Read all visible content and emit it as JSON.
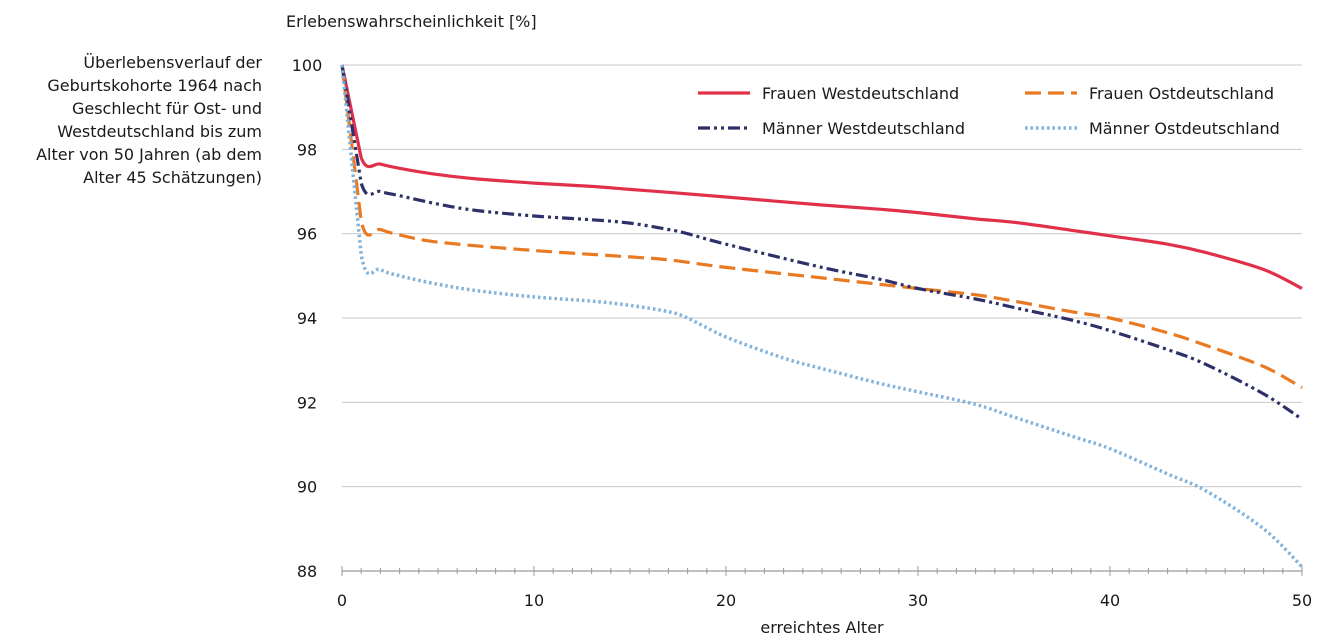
{
  "caption": [
    "Überlebensverlauf der",
    "Geburtskohorte 1964 nach",
    "Geschlecht für Ost- und",
    "Westdeutschland bis zum",
    "Alter von 50 Jahren (ab dem",
    "Alter 45 Schätzungen)"
  ],
  "chart_data": {
    "type": "line",
    "title": "",
    "xlabel": "erreichtes Alter",
    "ylabel": "Erlebenswahrscheinlichkeit [%]",
    "xlim": [
      0,
      50
    ],
    "ylim": [
      88,
      100
    ],
    "x_ticks": [
      "0",
      "10",
      "20",
      "30",
      "40",
      "50"
    ],
    "y_ticks": [
      "88",
      "90",
      "92",
      "94",
      "96",
      "98",
      "100"
    ],
    "grid": "horizontal",
    "legend_position": "top-right",
    "series": [
      {
        "name": "Frauen Westdeutschland",
        "color": "#e0304a",
        "style": "solid",
        "points": [
          [
            0,
            100
          ],
          [
            1,
            97.8
          ],
          [
            2,
            97.65
          ],
          [
            3,
            97.55
          ],
          [
            5,
            97.4
          ],
          [
            7,
            97.3
          ],
          [
            10,
            97.2
          ],
          [
            13,
            97.12
          ],
          [
            15,
            97.05
          ],
          [
            17,
            96.98
          ],
          [
            20,
            96.87
          ],
          [
            25,
            96.68
          ],
          [
            28,
            96.58
          ],
          [
            30,
            96.5
          ],
          [
            33,
            96.35
          ],
          [
            35,
            96.27
          ],
          [
            38,
            96.08
          ],
          [
            40,
            95.95
          ],
          [
            43,
            95.75
          ],
          [
            45,
            95.55
          ],
          [
            48,
            95.15
          ],
          [
            50,
            94.7
          ]
        ]
      },
      {
        "name": "Frauen Ostdeutschland",
        "color": "#ea7a22",
        "style": "dashed",
        "points": [
          [
            0,
            100
          ],
          [
            1,
            96.3
          ],
          [
            2,
            96.1
          ],
          [
            3,
            95.97
          ],
          [
            5,
            95.8
          ],
          [
            10,
            95.6
          ],
          [
            15,
            95.45
          ],
          [
            17,
            95.38
          ],
          [
            20,
            95.2
          ],
          [
            25,
            94.95
          ],
          [
            30,
            94.7
          ],
          [
            33,
            94.55
          ],
          [
            35,
            94.4
          ],
          [
            38,
            94.15
          ],
          [
            40,
            94.0
          ],
          [
            43,
            93.65
          ],
          [
            45,
            93.35
          ],
          [
            48,
            92.85
          ],
          [
            50,
            92.35
          ]
        ]
      },
      {
        "name": "Männer Westdeutschland",
        "color": "#2e3169",
        "style": "dash-dot-dot",
        "points": [
          [
            0,
            100
          ],
          [
            1,
            97.2
          ],
          [
            2,
            97.0
          ],
          [
            3,
            96.9
          ],
          [
            5,
            96.7
          ],
          [
            7,
            96.55
          ],
          [
            10,
            96.42
          ],
          [
            13,
            96.33
          ],
          [
            15,
            96.25
          ],
          [
            17,
            96.1
          ],
          [
            18,
            96.0
          ],
          [
            20,
            95.75
          ],
          [
            25,
            95.2
          ],
          [
            28,
            94.92
          ],
          [
            30,
            94.7
          ],
          [
            33,
            94.45
          ],
          [
            35,
            94.25
          ],
          [
            38,
            93.95
          ],
          [
            40,
            93.7
          ],
          [
            43,
            93.25
          ],
          [
            45,
            92.9
          ],
          [
            48,
            92.2
          ],
          [
            50,
            91.6
          ]
        ]
      },
      {
        "name": "Männer Ostdeutschland",
        "color": "#7fb2dc",
        "style": "dotted",
        "points": [
          [
            0,
            100
          ],
          [
            1,
            95.5
          ],
          [
            2,
            95.15
          ],
          [
            3,
            95.0
          ],
          [
            5,
            94.8
          ],
          [
            7,
            94.65
          ],
          [
            10,
            94.5
          ],
          [
            13,
            94.4
          ],
          [
            15,
            94.3
          ],
          [
            17,
            94.15
          ],
          [
            18,
            94.0
          ],
          [
            20,
            93.55
          ],
          [
            23,
            93.05
          ],
          [
            25,
            92.8
          ],
          [
            28,
            92.45
          ],
          [
            30,
            92.25
          ],
          [
            33,
            91.95
          ],
          [
            35,
            91.65
          ],
          [
            38,
            91.2
          ],
          [
            40,
            90.9
          ],
          [
            43,
            90.3
          ],
          [
            45,
            89.9
          ],
          [
            48,
            89.0
          ],
          [
            50,
            88.1
          ]
        ]
      }
    ]
  }
}
